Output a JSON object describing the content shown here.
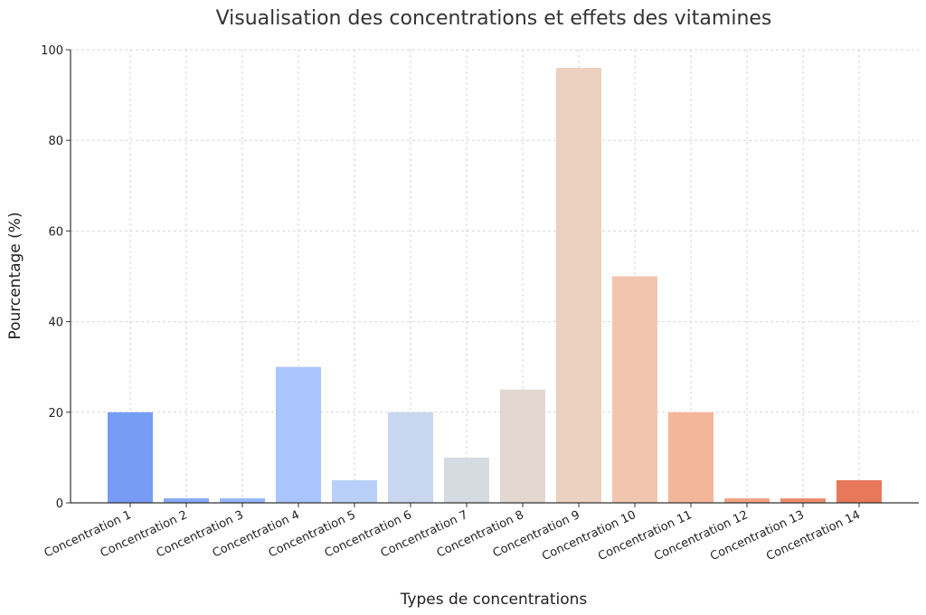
{
  "chart_data": {
    "type": "bar",
    "title": "Visualisation des concentrations et effets des vitamines",
    "xlabel": "Types de concentrations",
    "ylabel": "Pourcentage (%)",
    "ylim": [
      0,
      100
    ],
    "yticks": [
      "0",
      "20",
      "40",
      "60",
      "80",
      "100"
    ],
    "grid": true,
    "categories": [
      "Concentration 1",
      "Concentration 2",
      "Concentration 3",
      "Concentration 4",
      "Concentration 5",
      "Concentration 6",
      "Concentration 7",
      "Concentration 8",
      "Concentration 9",
      "Concentration 10",
      "Concentration 11",
      "Concentration 12",
      "Concentration 13",
      "Concentration 14"
    ],
    "values": [
      20,
      1,
      1,
      30,
      5,
      20,
      10,
      25,
      96,
      50,
      20,
      1,
      1,
      5
    ],
    "colors": [
      "#779CF6",
      "#86A9F9",
      "#97B6FB",
      "#A9C5FB",
      "#BAD0F8",
      "#C8D6EF",
      "#D6DAE1",
      "#E2D8D1",
      "#ECD1C1",
      "#F2C6AE",
      "#F4B699",
      "#F3A284",
      "#EE8E6E",
      "#E8785A"
    ]
  }
}
